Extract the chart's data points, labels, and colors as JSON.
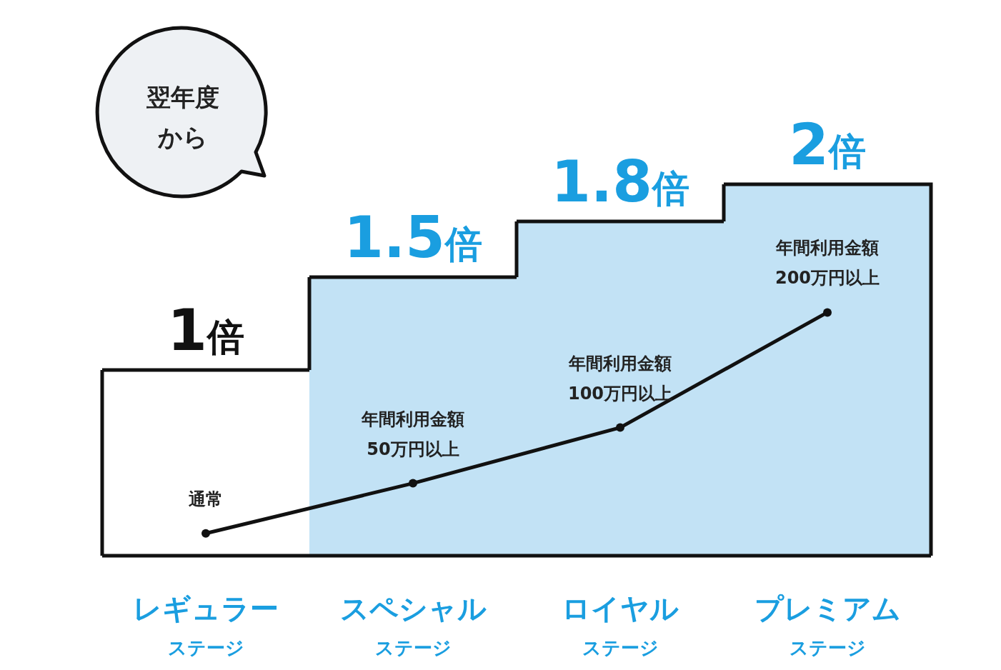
{
  "chart_data": {
    "type": "bar",
    "ylim": [
      0,
      2
    ],
    "categories": [
      "レギュラーステージ",
      "スペシャルステージ",
      "ロイヤルステージ",
      "プレミアムステージ"
    ],
    "series": [
      {
        "colors": [
          "#ffffff",
          "#c2e2f5",
          "#c2e2f5",
          "#c2e2f5"
        ],
        "values": [
          1,
          1.5,
          1.8,
          2
        ],
        "value_labels": [
          "1倍",
          "1.5倍",
          "1.8倍",
          "2倍"
        ]
      },
      {
        "type": "line",
        "color": "#111111",
        "marker": "circle",
        "values": [
          0.12,
          0.39,
          0.69,
          1.31
        ],
        "value_labels": [
          "通常",
          "年間利用金額50万円以上",
          "年間利用金額100万円以上",
          "年間利用金額200万円以上"
        ]
      }
    ],
    "annotations": [
      "翌年度から"
    ]
  }
}
